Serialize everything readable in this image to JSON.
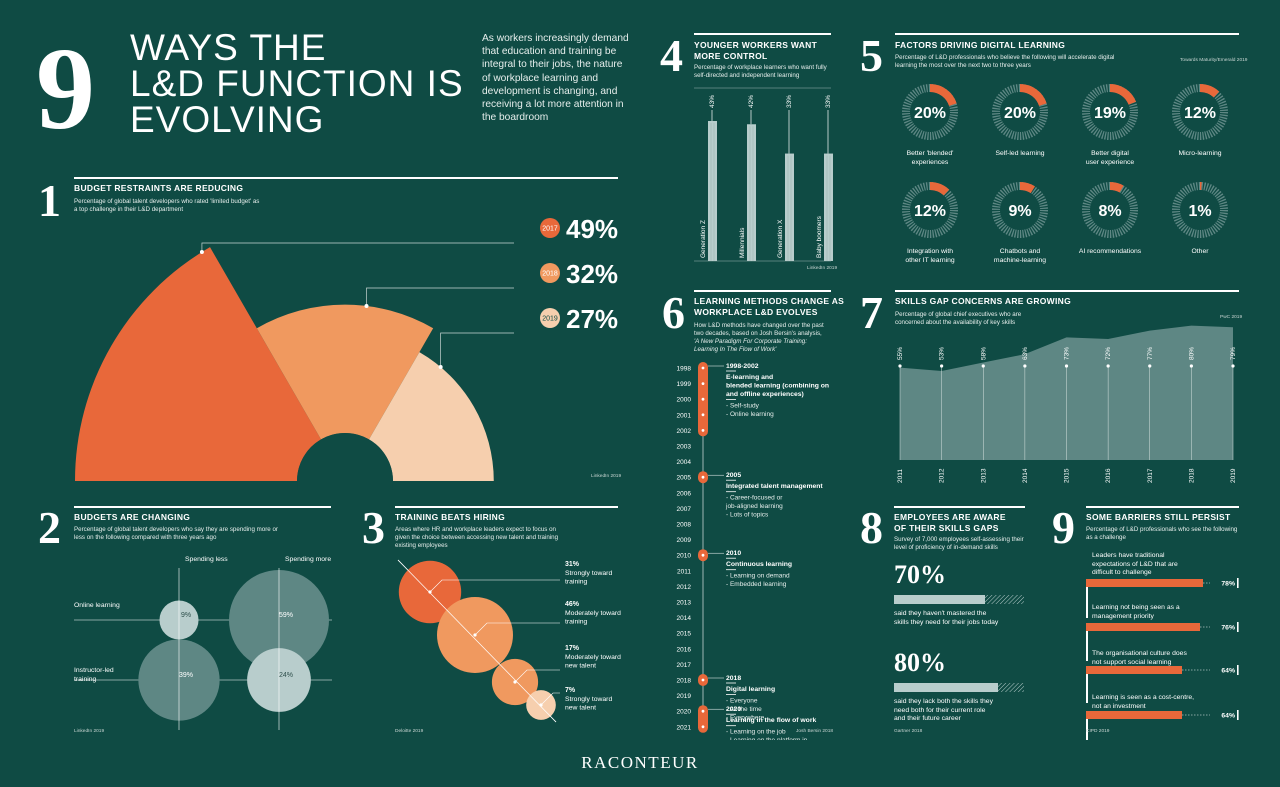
{
  "header": {
    "big_number": "9",
    "title_lines": [
      "WAYS THE",
      "L&D FUNCTION IS",
      "EVOLVING"
    ],
    "intro": "As workers increasingly demand that education and training be integral to their jobs, the nature of workplace learning and development is changing, and receiving a lot more attention in the boardroom"
  },
  "colors": {
    "background": "#0f4b44",
    "orange": "#e8683a",
    "orange_mid": "#f0995f",
    "peach": "#f6cfae",
    "teal_grey": "#5e8784",
    "light_grey": "#b8cdcc"
  },
  "s1": {
    "number": "1",
    "title": "BUDGET RESTRAINTS ARE REDUCING",
    "subtitle": "Percentage of global talent developers who rated 'limited budget' as a top challenge in their L&D department",
    "source": "LinkedIn 2019",
    "years": [
      "2017",
      "2018",
      "2019"
    ],
    "values": [
      49,
      32,
      27
    ],
    "value_labels": [
      "49%",
      "32%",
      "27%"
    ]
  },
  "s2": {
    "number": "2",
    "title": "BUDGETS ARE CHANGING",
    "subtitle": "Percentage of global talent developers who say they are spending more or less on the following compared with three years ago",
    "col_less": "Spending less",
    "col_more": "Spending more",
    "row_online": "Online learning",
    "row_instructor": "Instructor-led training",
    "values": {
      "online_less": 9,
      "online_more": 59,
      "instructor_less": 39,
      "instructor_more": 24
    },
    "labels": {
      "online_less": "9%",
      "online_more": "59%",
      "instructor_less": "39%",
      "instructor_more": "24%"
    },
    "source": "LinkedIn 2019"
  },
  "s3": {
    "number": "3",
    "title": "TRAINING BEATS HIRING",
    "subtitle": "Areas where HR and workplace leaders expect to focus on given the choice between accessing new talent and training existing employees",
    "items": [
      {
        "pct": "31%",
        "label": "Strongly toward training",
        "value": 31
      },
      {
        "pct": "46%",
        "label": "Moderately toward training",
        "value": 46
      },
      {
        "pct": "17%",
        "label": "Moderately toward new talent",
        "value": 17
      },
      {
        "pct": "7%",
        "label": "Strongly toward new talent",
        "value": 7
      }
    ],
    "source": "Deloitte 2019"
  },
  "s4": {
    "number": "4",
    "title_lines": [
      "YOUNGER WORKERS WANT",
      "MORE CONTROL"
    ],
    "subtitle": "Percentage of workplace learners who want fully self-directed and independent learning",
    "bars": [
      {
        "label": "Generation Z",
        "value": 43,
        "pct": "43%"
      },
      {
        "label": "Millennials",
        "value": 42,
        "pct": "42%"
      },
      {
        "label": "Generation X",
        "value": 33,
        "pct": "33%"
      },
      {
        "label": "Baby boomers",
        "value": 33,
        "pct": "33%"
      }
    ],
    "source": "LinkedIn 2019"
  },
  "s5": {
    "number": "5",
    "title": "FACTORS DRIVING DIGITAL LEARNING",
    "subtitle": "Percentage of L&D professionals who believe the following will accelerate digital learning the most over the next two to three years",
    "source": "Towards Maturity/Emerald 2019",
    "items": [
      {
        "value": 20,
        "pct": "20%",
        "label": "Better 'blended' experiences"
      },
      {
        "value": 20,
        "pct": "20%",
        "label": "Self-led learning"
      },
      {
        "value": 19,
        "pct": "19%",
        "label": "Better digital user experience"
      },
      {
        "value": 12,
        "pct": "12%",
        "label": "Micro-learning"
      },
      {
        "value": 12,
        "pct": "12%",
        "label": "Integration with other IT learning"
      },
      {
        "value": 9,
        "pct": "9%",
        "label": "Chatbots and machine-learning"
      },
      {
        "value": 8,
        "pct": "8%",
        "label": "AI recommendations"
      },
      {
        "value": 1,
        "pct": "1%",
        "label": "Other"
      }
    ]
  },
  "s6": {
    "number": "6",
    "title_lines": [
      "LEARNING METHODS CHANGE AS",
      "WORKPLACE L&D EVOLVES"
    ],
    "subtitle_lines": [
      "How L&D methods have changed over the past",
      "two decades, based on Josh Bersin's analysis,",
      "'A New Paradigm For Corporate Training:",
      "Learning In The Flow of Work'"
    ],
    "years": [
      "1998",
      "1999",
      "2000",
      "2001",
      "2002",
      "2003",
      "2004",
      "2005",
      "2006",
      "2007",
      "2008",
      "2009",
      "2010",
      "2011",
      "2012",
      "2013",
      "2014",
      "2015",
      "2016",
      "2017",
      "2018",
      "2019",
      "2020",
      "2021"
    ],
    "eras": [
      {
        "period": "1998-2002",
        "title_lines": [
          "E-learning and",
          "blended learning (combining on",
          "and offline experiences)"
        ],
        "items": [
          "Self-study",
          "Online learning"
        ]
      },
      {
        "period": "2005",
        "title_lines": [
          "Integrated talent management"
        ],
        "items": [
          "Career-focused or",
          "job-aligned learning",
          "Lots of topics"
        ]
      },
      {
        "period": "2010",
        "title_lines": [
          "Continuous learning"
        ],
        "items": [
          "Learning on demand",
          "Embedded learning"
        ]
      },
      {
        "period": "2018",
        "title_lines": [
          "Digital learning"
        ],
        "items": [
          "Everyone",
          "All the time",
          "Everywhere"
        ]
      },
      {
        "period": "2020",
        "title_lines": [
          "Learning in the flow of work"
        ],
        "items": [
          "Learning on the job",
          "Learning on the platform in",
          "which you work"
        ]
      }
    ],
    "source": "Josh Bersin 2018"
  },
  "s7": {
    "number": "7",
    "title": "SKILLS GAP CONCERNS ARE GROWING",
    "subtitle": "Percentage of global chief executives who are concerned about the availability of key skills",
    "source": "PwC 2019",
    "chart_data": {
      "type": "area",
      "x": [
        "2011",
        "2012",
        "2013",
        "2014",
        "2015",
        "2016",
        "2017",
        "2018",
        "2019"
      ],
      "values": [
        55,
        53,
        58,
        63,
        73,
        72,
        77,
        80,
        79
      ],
      "labels": [
        "55%",
        "53%",
        "58%",
        "63%",
        "73%",
        "72%",
        "77%",
        "80%",
        "79%"
      ]
    }
  },
  "s8": {
    "number": "8",
    "title_lines": [
      "EMPLOYEES ARE AWARE",
      "OF THEIR SKILLS GAPS"
    ],
    "subtitle": "Survey of 7,000 employees self-assessing their level of proficiency of in-demand skills",
    "stats": [
      {
        "pct": "70%",
        "value": 70,
        "text_lines": [
          "said they haven't mastered the",
          "skills they need for their jobs today"
        ]
      },
      {
        "pct": "80%",
        "value": 80,
        "text_lines": [
          "said they lack both the skills they",
          "need both for their current role",
          "and their future career"
        ]
      }
    ],
    "source": "Gartner 2018"
  },
  "s9": {
    "number": "9",
    "title": "SOME BARRIERS STILL PERSIST",
    "subtitle": "Percentage of L&D professionals who see the following as a challenge",
    "items": [
      {
        "label_lines": [
          "Leaders have traditional",
          "expectations of L&D that are",
          "difficult to challenge"
        ],
        "value": 78,
        "pct": "78%"
      },
      {
        "label_lines": [
          "Learning not being seen as a",
          "management priority"
        ],
        "value": 76,
        "pct": "76%"
      },
      {
        "label_lines": [
          "The organisational culture does",
          "not support social learning"
        ],
        "value": 64,
        "pct": "64%"
      },
      {
        "label_lines": [
          "Learning is seen as a cost-centre,",
          "not an investment"
        ],
        "value": 64,
        "pct": "64%"
      }
    ],
    "source": "CIPD 2019"
  },
  "footer": {
    "brand": "RACONTEUR"
  }
}
